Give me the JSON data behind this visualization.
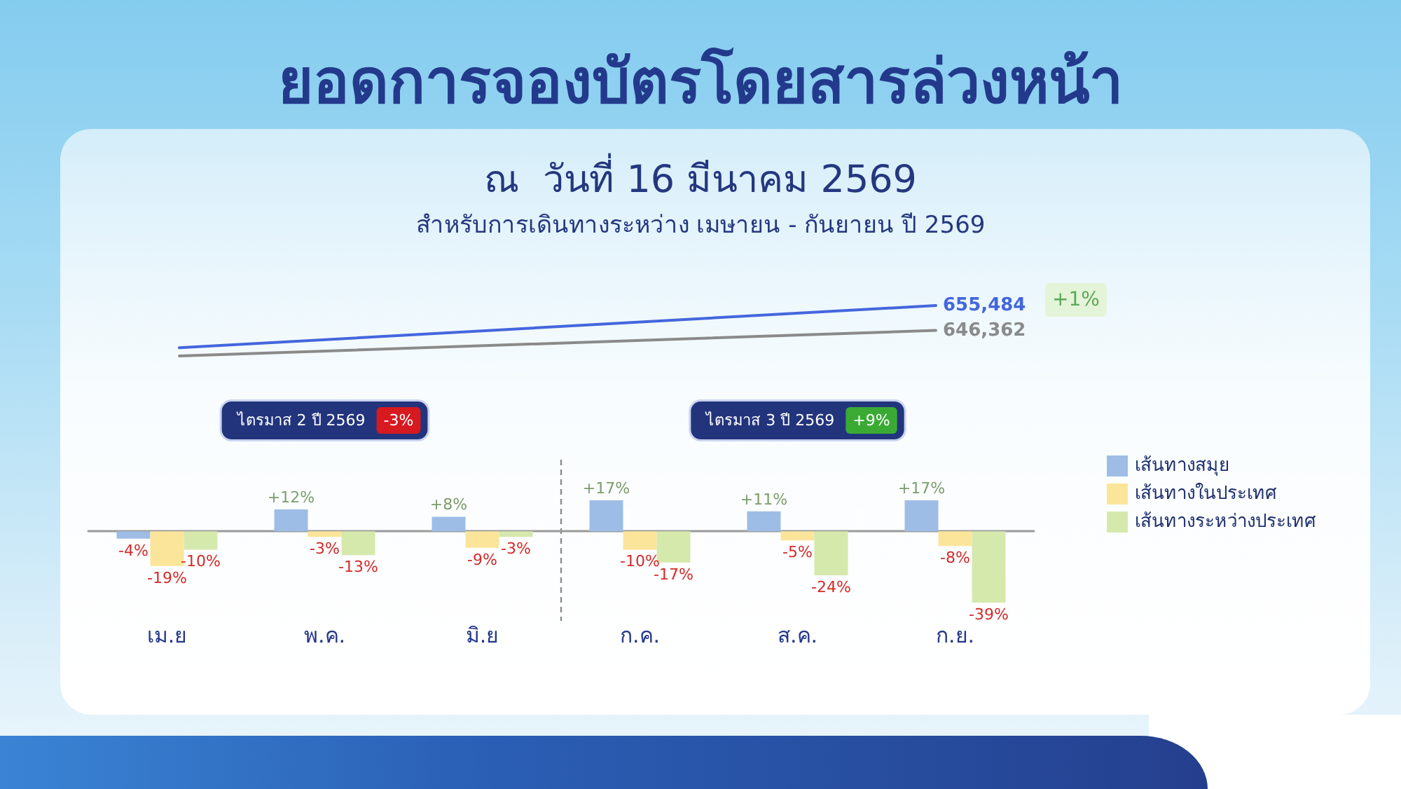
{
  "chart_data": [
    {
      "type": "line",
      "title": "ยอดการจองบัตรโดยสารล่วงหน้า",
      "subtitle": "ณ  วันที่ 16 มีนาคม 2569\nสำหรับการเดินทางระหว่าง เมษายน - กันยายน ปี 2569",
      "categories": [
        null,
        null
      ],
      "series": [
        {
          "color": "#4466dd",
          "values": [
            640000,
            655484
          ],
          "value_labels": [
            null,
            "655,484"
          ]
        },
        {
          "color": "#8a8a8a",
          "values": [
            637000,
            646362
          ],
          "value_labels": [
            null,
            "646,362"
          ]
        }
      ],
      "annotations": [
        "+1%"
      ],
      "marker": "none",
      "tick_labels": false
    },
    {
      "type": "bar",
      "categories": [
        "เม.ย",
        "พ.ค.",
        "มิ.ย",
        "ก.ค.",
        "ส.ค.",
        "ก.ย."
      ],
      "series": [
        {
          "name": "เส้นทางสมุย",
          "color": "#9ebde6",
          "values": [
            -4,
            12,
            8,
            17,
            11,
            17
          ],
          "value_labels": [
            "-4%",
            "+12%",
            "+8%",
            "+17%",
            "+11%",
            "+17%"
          ]
        },
        {
          "name": "เส้นทางในประเทศ",
          "color": "#fbe59a",
          "values": [
            -19,
            -3,
            -9,
            -10,
            -5,
            -8
          ],
          "value_labels": [
            "-19%",
            "-3%",
            "-9%",
            "-10%",
            "-5%",
            "-8%"
          ]
        },
        {
          "name": "เส้นทางระหว่างประเทศ",
          "color": "#d5e9ad",
          "values": [
            -10,
            -13,
            -3,
            -17,
            -24,
            -39
          ],
          "value_labels": [
            "-10%",
            "-13%",
            "-3%",
            "-17%",
            "-24%",
            "-39%"
          ]
        }
      ],
      "annotations": [
        "ไตรมาส 2 ปี 2569",
        "-3%",
        "ไตรมาส 3 ปี 2569",
        "+9%"
      ],
      "legend": "right",
      "tick_labels": "x"
    }
  ]
}
